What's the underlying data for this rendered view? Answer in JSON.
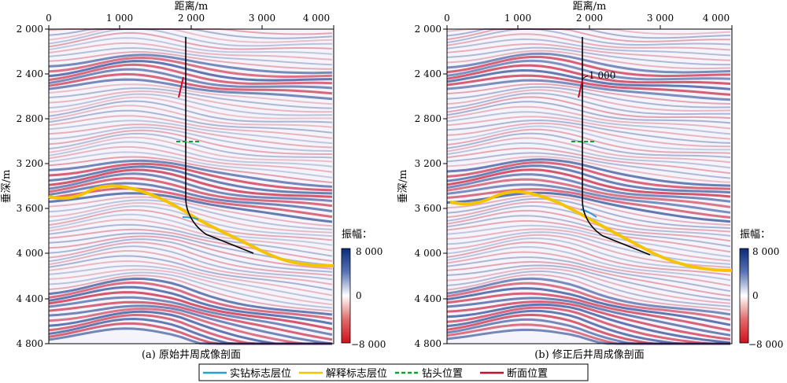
{
  "panels": [
    {
      "xlabel": "距离/m",
      "ylabel": "垂深/m",
      "x_ticks": [
        "0",
        "1 000",
        "2 000",
        "3 000",
        "4 000"
      ],
      "y_ticks": [
        "2 000",
        "2 400",
        "2 800",
        "3 200",
        "3 600",
        "4 000",
        "4 400",
        "4 800"
      ],
      "caption": "(a) 原始井周成像剖面",
      "depth_annotation": "",
      "colorbar": {
        "title": "振幅：",
        "max_label": "8 000",
        "mid_label": "0",
        "min_label": "−8 000"
      }
    },
    {
      "xlabel": "距离/m",
      "ylabel": "垂深/m",
      "x_ticks": [
        "0",
        "1 000",
        "2 000",
        "3 000",
        "4 000"
      ],
      "y_ticks": [
        "2 000",
        "2 400",
        "2 800",
        "3 200",
        "3 600",
        "4 000",
        "4 400",
        "4 800"
      ],
      "caption": "(b) 修正后井周成像剖面",
      "depth_annotation": "1 000",
      "colorbar": {
        "title": "振幅：",
        "max_label": "8 000",
        "mid_label": "0",
        "min_label": "−8 000"
      }
    }
  ],
  "legend": [
    {
      "label": "实钻标志层位",
      "color": "#2a9fd6",
      "style": "solid"
    },
    {
      "label": "解释标志层位",
      "color": "#f5c400",
      "style": "solid"
    },
    {
      "label": "钻头位置",
      "color": "#1a9a3a",
      "style": "dashed"
    },
    {
      "label": "断面位置",
      "color": "#c8102e",
      "style": "solid"
    }
  ],
  "colors": {
    "positive": "#1f3f8f",
    "negative": "#c8102e",
    "well_path": "#000000"
  }
}
